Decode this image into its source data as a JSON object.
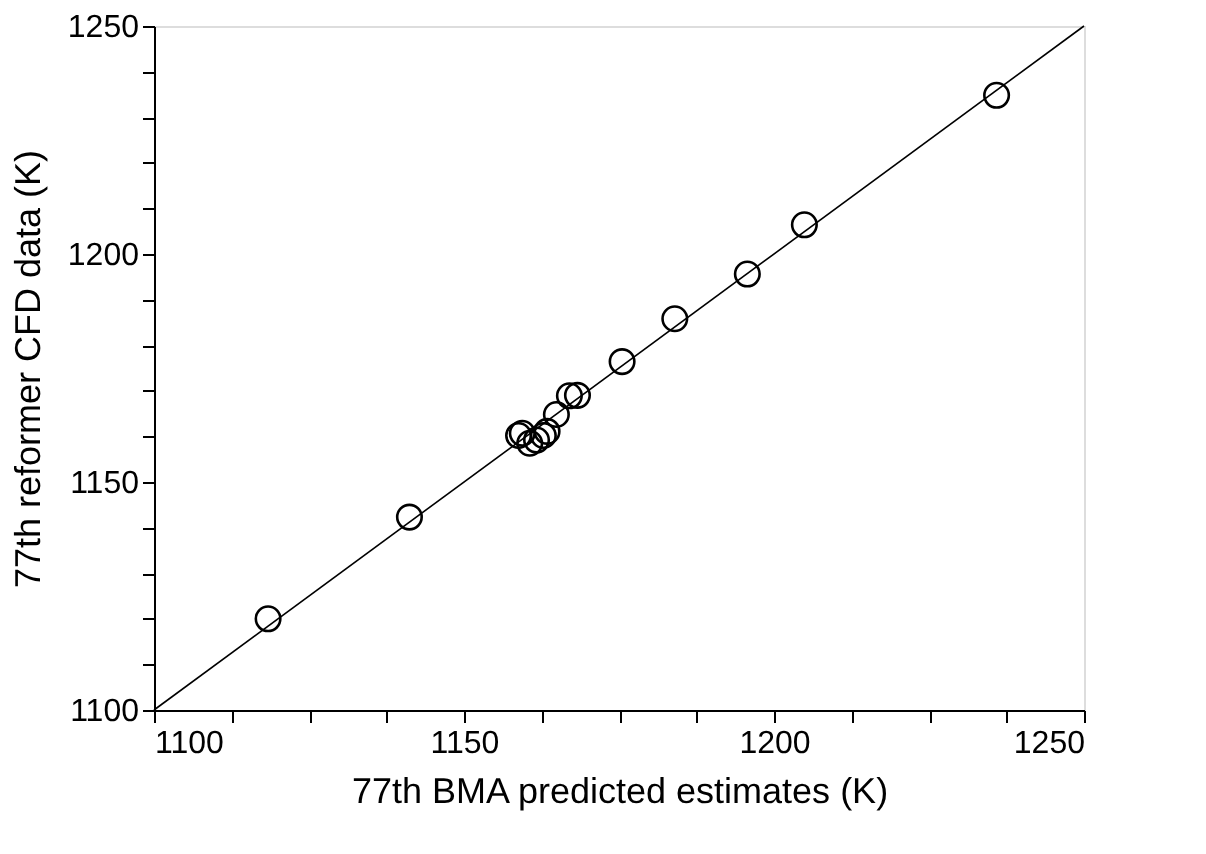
{
  "chart_data": {
    "type": "scatter",
    "xlabel": "77th BMA predicted estimates (K)",
    "ylabel": "77th reformer CFD data (K)",
    "xlim": [
      1100,
      1250
    ],
    "ylim": [
      1100,
      1250
    ],
    "xticks": [
      1100,
      {
        "value": 1112.5,
        "label": null
      },
      {
        "value": 1125,
        "label": null
      },
      {
        "value": 1137.5,
        "label": null
      },
      1150,
      {
        "value": 1162.5,
        "label": null
      },
      {
        "value": 1175,
        "label": null
      },
      {
        "value": 1187.5,
        "label": null
      },
      1200,
      {
        "value": 1212.5,
        "label": null
      },
      {
        "value": 1225,
        "label": null
      },
      {
        "value": 1237.5,
        "label": null
      },
      1250
    ],
    "yticks": [
      1100,
      {
        "value": 1110,
        "label": null
      },
      {
        "value": 1120,
        "label": null
      },
      {
        "value": 1130,
        "label": null
      },
      {
        "value": 1140,
        "label": null
      },
      1150,
      {
        "value": 1160,
        "label": null
      },
      {
        "value": 1170,
        "label": null
      },
      {
        "value": 1180,
        "label": null
      },
      {
        "value": 1190,
        "label": null
      },
      1200,
      {
        "value": 1210,
        "label": null
      },
      {
        "value": 1220,
        "label": null
      },
      {
        "value": 1230,
        "label": null
      },
      {
        "value": 1240,
        "label": null
      },
      1250
    ],
    "grid": false,
    "legend": false,
    "series": [
      {
        "color": "#000000",
        "marker": "circle",
        "x": [
          1118.4,
          1141.2,
          1159.4,
          1158.8,
          1160.6,
          1161.7,
          1162.8,
          1163.4,
          1164.9,
          1167.0,
          1168.3,
          1175.5,
          1184.0,
          1195.7,
          1204.9,
          1235.9
        ],
        "values": [
          1120.0,
          1142.3,
          1160.7,
          1160.2,
          1158.5,
          1159.2,
          1160.2,
          1161.1,
          1164.8,
          1168.9,
          1169.0,
          1176.4,
          1185.8,
          1195.6,
          1206.4,
          1234.8
        ]
      },
      {
        "type": "line",
        "color": "#000000",
        "line_style": "solid",
        "marker": "none",
        "x": [
          1100,
          1250
        ],
        "values": [
          1100,
          1250
        ]
      }
    ]
  }
}
